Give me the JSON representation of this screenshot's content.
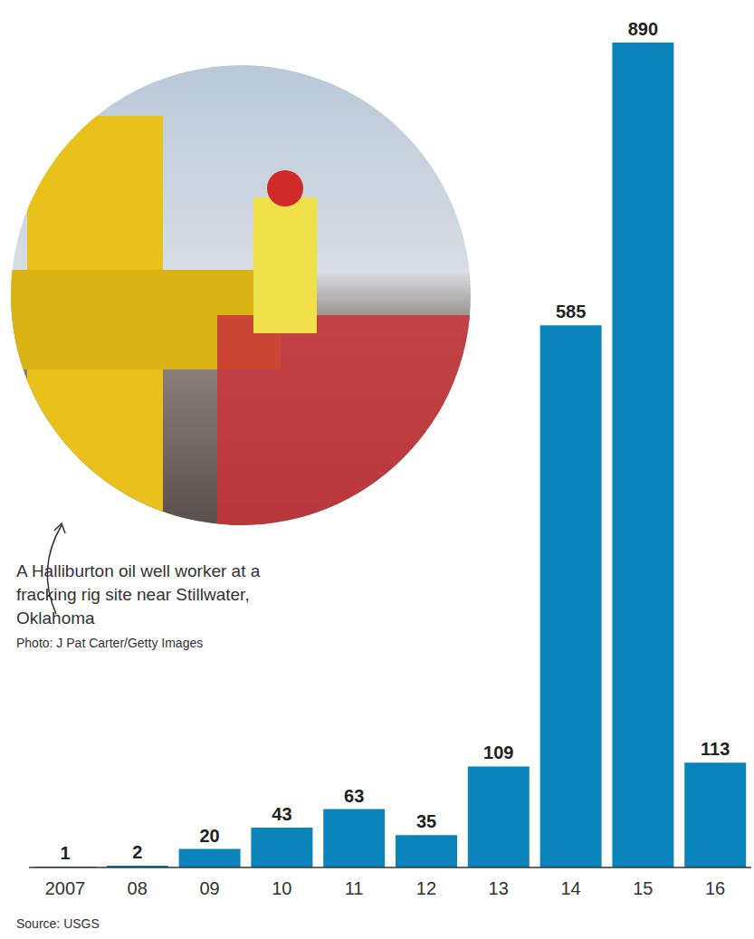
{
  "chart_data": {
    "type": "bar",
    "categories": [
      "2007",
      "08",
      "09",
      "10",
      "11",
      "12",
      "13",
      "14",
      "15",
      "16"
    ],
    "values": [
      1,
      2,
      20,
      43,
      63,
      35,
      109,
      585,
      890,
      113
    ],
    "color": "#0a84ba",
    "ylim": [
      0,
      890
    ],
    "data_labels": true,
    "tick_labels": "x",
    "grid": false,
    "annotations": [
      {
        "text": "A Halliburton oil well worker at a fracking rig site near Stillwater, Oklahoma"
      },
      {
        "text": "Photo: J Pat Carter/Getty Images"
      }
    ],
    "source": "Source: USGS"
  }
}
